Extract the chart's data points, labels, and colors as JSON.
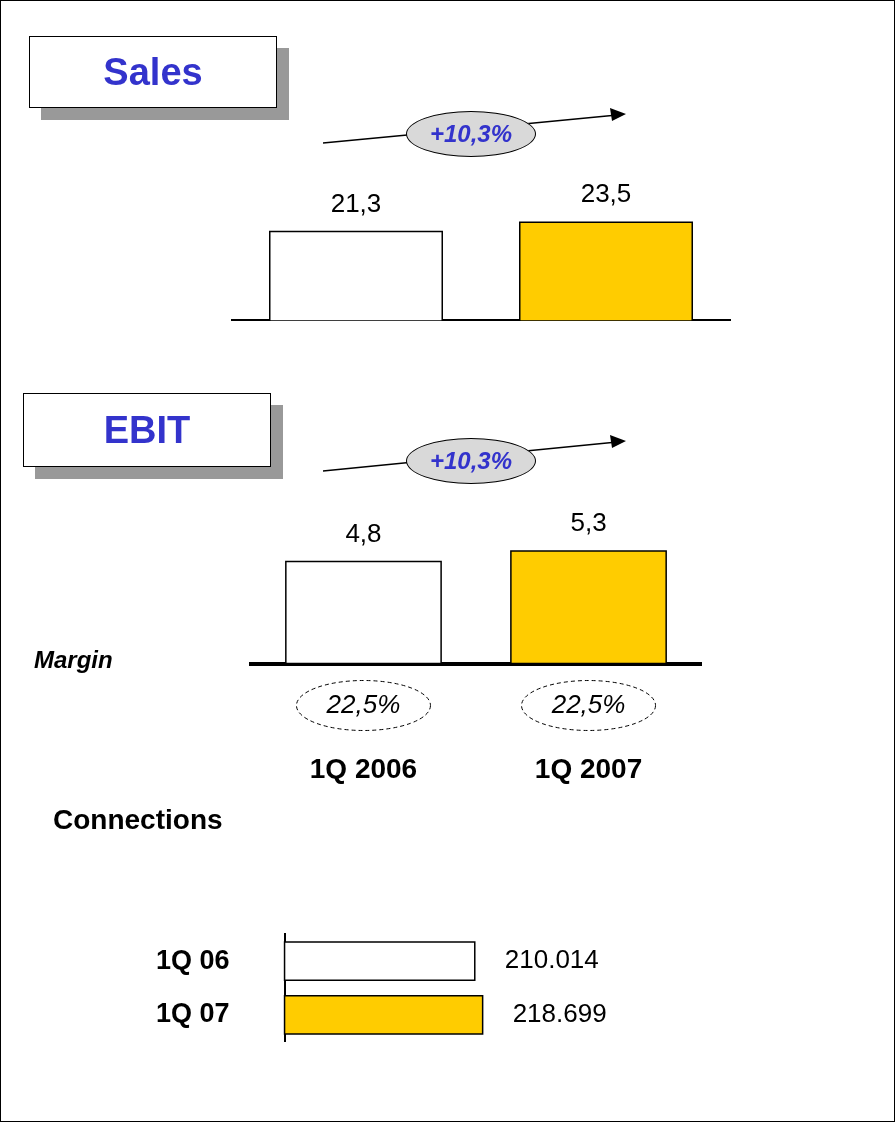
{
  "chart_data": [
    {
      "type": "bar",
      "title": "Sales",
      "categories": [
        null,
        null
      ],
      "values": [
        21.3,
        23.5
      ],
      "colors": [
        "#ffffff",
        "#ffcc00"
      ],
      "value_labels": [
        "21,3",
        "23,5"
      ],
      "tick_labels": false,
      "annotations": [
        "+10,3%"
      ]
    },
    {
      "type": "bar",
      "title": "EBIT",
      "categories": [
        "1Q 2006",
        "1Q 2007"
      ],
      "values": [
        4.8,
        5.3
      ],
      "colors": [
        "#ffffff",
        "#ffcc00"
      ],
      "value_labels": [
        "4,8",
        "5,3"
      ],
      "tick_labels": "x",
      "annotations": [
        "+10,3%",
        "Margin",
        "22,5%",
        "22,5%"
      ]
    },
    {
      "type": "bar",
      "orientation": "horizontal",
      "title": "Connections",
      "categories": [
        "1Q 06",
        "1Q 07"
      ],
      "values": [
        210014,
        218699
      ],
      "colors": [
        "#ffffff",
        "#ffcc00"
      ],
      "value_labels": [
        "210.014",
        "218.699"
      ],
      "tick_labels": "y"
    }
  ]
}
